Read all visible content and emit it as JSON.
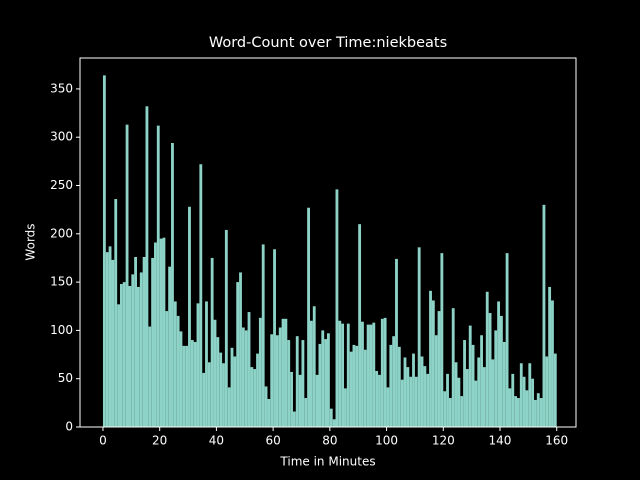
{
  "chart_data": {
    "type": "histogram",
    "title": "Word-Count over Time:niekbeats",
    "xlabel": "Time in Minutes",
    "ylabel": "Words",
    "color": "#8dd3c7",
    "bins": [
      0,
      1,
      2,
      3,
      4,
      5,
      6,
      7,
      8,
      9,
      10,
      11,
      12,
      13,
      14,
      15,
      16,
      17,
      18,
      19,
      20,
      21,
      22,
      23,
      24,
      25,
      26,
      27,
      28,
      29,
      30,
      31,
      32,
      33,
      34,
      35,
      36,
      37,
      38,
      39,
      40,
      41,
      42,
      43,
      44,
      45,
      46,
      47,
      48,
      49,
      50,
      51,
      52,
      53,
      54,
      55,
      56,
      57,
      58,
      59,
      60,
      61,
      62,
      63,
      64,
      65,
      66,
      67,
      68,
      69,
      70,
      71,
      72,
      73,
      74,
      75,
      76,
      77,
      78,
      79,
      80,
      81,
      82,
      83,
      84,
      85,
      86,
      87,
      88,
      89,
      90,
      91,
      92,
      93,
      94,
      95,
      96,
      97,
      98,
      99,
      100,
      101,
      102,
      103,
      104,
      105,
      106,
      107,
      108,
      109,
      110,
      111,
      112,
      113,
      114,
      115,
      116,
      117,
      118,
      119,
      120,
      121,
      122,
      123,
      124,
      125,
      126,
      127,
      128,
      129,
      130,
      131,
      132,
      133,
      134,
      135,
      136,
      137,
      138,
      139,
      140,
      141,
      142,
      143,
      144,
      145,
      146,
      147,
      148,
      149,
      150,
      151,
      152,
      153,
      154,
      155,
      156,
      157,
      158,
      159,
      160
    ],
    "values": [
      364,
      181,
      187,
      173,
      236,
      127,
      148,
      150,
      313,
      146,
      158,
      176,
      145,
      160,
      176,
      332,
      104,
      175,
      191,
      312,
      195,
      196,
      120,
      166,
      294,
      130,
      115,
      99,
      84,
      84,
      228,
      90,
      88,
      128,
      272,
      56,
      130,
      67,
      175,
      111,
      93,
      77,
      66,
      204,
      41,
      82,
      73,
      150,
      160,
      103,
      100,
      119,
      62,
      60,
      76,
      113,
      189,
      42,
      29,
      96,
      184,
      95,
      103,
      112,
      112,
      90,
      57,
      16,
      94,
      54,
      90,
      30,
      227,
      110,
      125,
      54,
      86,
      100,
      91,
      97,
      19,
      8,
      246,
      110,
      107,
      40,
      107,
      78,
      85,
      84,
      210,
      109,
      80,
      106,
      106,
      108,
      58,
      54,
      112,
      113,
      41,
      85,
      94,
      174,
      83,
      49,
      72,
      62,
      52,
      76,
      52,
      186,
      73,
      63,
      55,
      141,
      131,
      95,
      120,
      180,
      37,
      55,
      30,
      123,
      67,
      51,
      32,
      90,
      60,
      105,
      85,
      48,
      72,
      95,
      62,
      140,
      118,
      70,
      100,
      130,
      115,
      88,
      180,
      40,
      55,
      32,
      30,
      66,
      52,
      38,
      66,
      50,
      28,
      35,
      30,
      230,
      73,
      145,
      131,
      76
    ],
    "xlim": [
      -8.1,
      166.8
    ],
    "ylim": [
      0,
      382
    ],
    "xticks": [
      0,
      20,
      40,
      60,
      80,
      100,
      120,
      140,
      160
    ],
    "yticks": [
      0,
      50,
      100,
      150,
      200,
      250,
      300,
      350
    ]
  }
}
